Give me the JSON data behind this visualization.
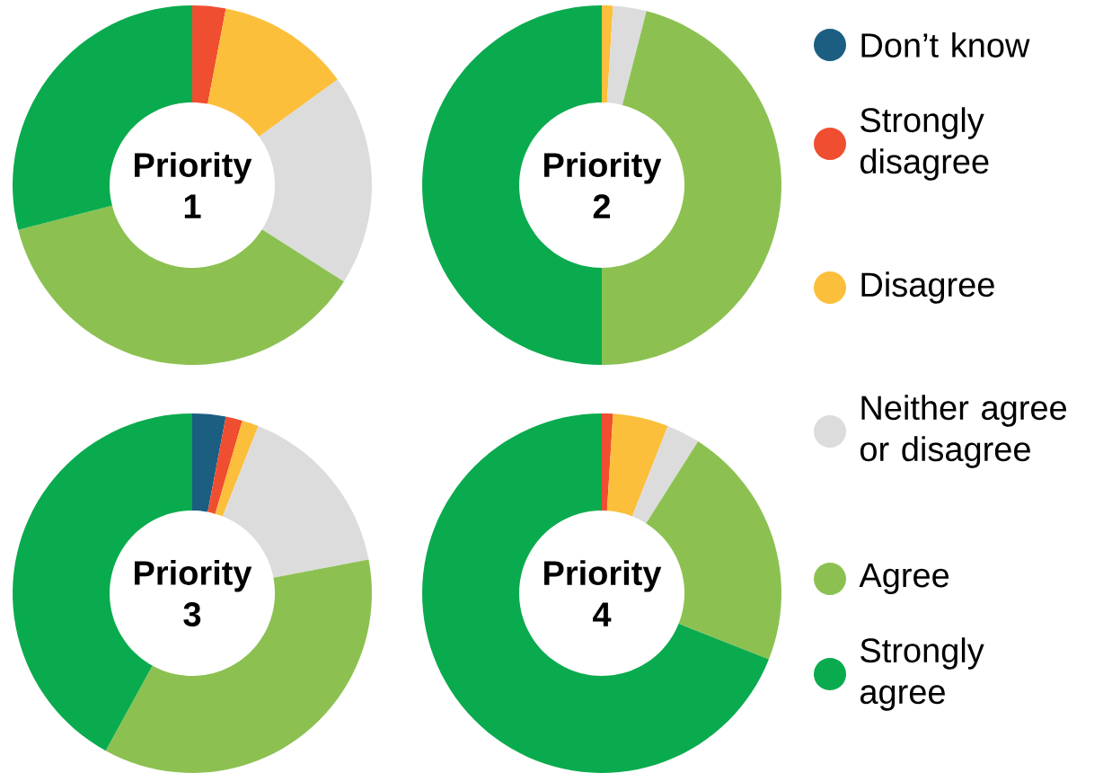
{
  "chart_data": [
    {
      "type": "donut",
      "title": "Priority 1",
      "categories": [
        "Don’t know",
        "Strongly disagree",
        "Disagree",
        "Neither agree or disagree",
        "Agree",
        "Strongly agree"
      ],
      "values": [
        0,
        3,
        12,
        19,
        37,
        29
      ],
      "colors": [
        "#1b5e82",
        "#f04e30",
        "#fbbf3b",
        "#dcdcdc",
        "#8cc152",
        "#0aab4e"
      ],
      "legend": "right"
    },
    {
      "type": "donut",
      "title": "Priority 2",
      "values": [
        0,
        0,
        1,
        3,
        46,
        50
      ],
      "colors": [
        "#1b5e82",
        "#f04e30",
        "#fbbf3b",
        "#dcdcdc",
        "#8cc152",
        "#0aab4e"
      ]
    },
    {
      "type": "donut",
      "title": "Priority 3",
      "values": [
        3,
        1.5,
        1.5,
        16,
        36,
        42
      ],
      "colors": [
        "#1b5e82",
        "#f04e30",
        "#fbbf3b",
        "#dcdcdc",
        "#8cc152",
        "#0aab4e"
      ]
    },
    {
      "type": "donut",
      "title": "Priority 4",
      "values": [
        0,
        1,
        5,
        3,
        22,
        69
      ],
      "colors": [
        "#1b5e82",
        "#f04e30",
        "#fbbf3b",
        "#dcdcdc",
        "#8cc152",
        "#0aab4e"
      ]
    }
  ]
}
